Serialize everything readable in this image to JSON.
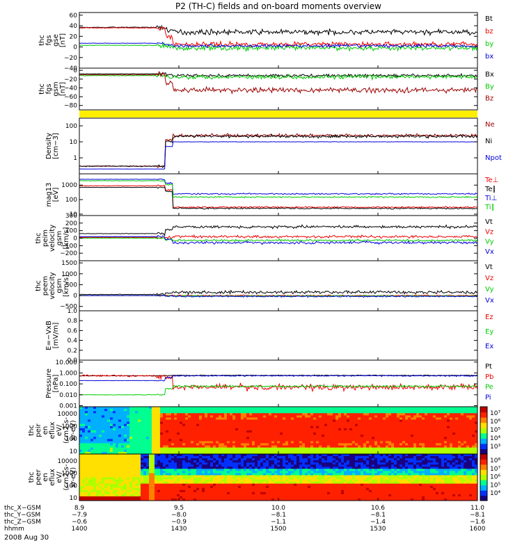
{
  "title": "P2 (TH-C) fields and on-board moments overview",
  "date_label": "2008 Aug 30",
  "colors": {
    "black": "#000000",
    "red": "#ee0000",
    "darkred": "#9b0000",
    "green": "#00cc00",
    "blue": "#0000dd",
    "yellow": "#ffee00"
  },
  "chart_data": [
    {
      "type": "line",
      "ylabel": [
        "thc",
        "fgs",
        "gse",
        "[nT]"
      ],
      "ylim": [
        -40,
        65
      ],
      "log": false,
      "yticks": [
        "60",
        "40",
        "20",
        "0",
        "−20",
        "−40"
      ],
      "ytick_values": [
        60,
        40,
        20,
        0,
        -20,
        -40
      ],
      "series": [
        {
          "name": "Bt",
          "color": "#000000",
          "approx": {
            "pre": 37,
            "post": 28,
            "noise": 8
          }
        },
        {
          "name": "bz",
          "color": "#ee0000",
          "approx": {
            "pre": 36,
            "post": 5,
            "noise": 8
          }
        },
        {
          "name": "by",
          "color": "#00cc00",
          "approx": {
            "pre": 3,
            "post": -2,
            "noise": 8
          }
        },
        {
          "name": "bx",
          "color": "#0000dd",
          "approx": {
            "pre": 7,
            "post": 2,
            "noise": 5
          }
        }
      ]
    },
    {
      "type": "line",
      "ylabel": [
        "thc",
        "fgs",
        "gsm",
        "[nT]"
      ],
      "ylim": [
        -90,
        5
      ],
      "log": false,
      "yticks": [
        "0",
        "−20",
        "−40",
        "−60",
        "−80"
      ],
      "ytick_values": [
        0,
        -20,
        -40,
        -60,
        -80
      ],
      "series": [
        {
          "name": "Bx",
          "color": "#000000",
          "approx": {
            "pre": -8,
            "post": -12,
            "noise": 6
          }
        },
        {
          "name": "By",
          "color": "#00cc00",
          "approx": {
            "pre": -12,
            "post": -15,
            "noise": 8
          }
        },
        {
          "name": "Bz",
          "color": "#9b0000",
          "approx": {
            "pre": -10,
            "post": -45,
            "noise": 10
          }
        }
      ]
    },
    {
      "type": "bar",
      "note": "yellow band",
      "color": "#ffee00"
    },
    {
      "type": "line",
      "ylabel": [
        "Density",
        "[cm−3]"
      ],
      "ylim": [
        0.1,
        300
      ],
      "log": true,
      "yticks": [
        "100",
        "10",
        "1"
      ],
      "ytick_values": [
        100,
        10,
        1
      ],
      "series": [
        {
          "name": "Ne",
          "color": "#9b0000",
          "approx": {
            "pre": 0.3,
            "post": 25,
            "noise": 0.15
          }
        },
        {
          "name": "Ni",
          "color": "#000000",
          "approx": {
            "pre": 0.3,
            "post": 22,
            "noise": 0.15
          }
        },
        {
          "name": "Npot",
          "color": "#0000dd",
          "approx": {
            "pre": 0.2,
            "post": 10,
            "noise": 0.02
          }
        }
      ]
    },
    {
      "type": "line",
      "ylabel": [
        "mag13",
        "[eV]"
      ],
      "ylim": [
        8,
        6000
      ],
      "log": true,
      "yticks": [
        "1000",
        "100",
        "10"
      ],
      "ytick_values": [
        1000,
        100,
        10
      ],
      "series": [
        {
          "name": "Te⊥",
          "color": "#ee0000",
          "approx": {
            "pre": 900,
            "post": 30,
            "noise": 0.08
          }
        },
        {
          "name": "Te∥",
          "color": "#000000",
          "approx": {
            "pre": 700,
            "post": 25,
            "noise": 0.08
          }
        },
        {
          "name": "Ti⊥",
          "color": "#0000dd",
          "approx": {
            "pre": 2500,
            "post": 250,
            "noise": 0.08
          }
        },
        {
          "name": "Ti∥",
          "color": "#00cc00",
          "approx": {
            "pre": 2000,
            "post": 150,
            "noise": 0.08
          }
        }
      ]
    },
    {
      "type": "line",
      "ylabel": [
        "thc",
        "peim",
        "velocity",
        "gsm",
        "[km/s]"
      ],
      "ylim": [
        -300,
        300
      ],
      "log": false,
      "yticks": [
        "300",
        "200",
        "100",
        "0",
        "−100",
        "−200"
      ],
      "ytick_values": [
        300,
        200,
        100,
        0,
        -100,
        -200
      ],
      "series": [
        {
          "name": "Vt",
          "color": "#000000",
          "approx": {
            "pre": 60,
            "post": 150,
            "noise": 30
          }
        },
        {
          "name": "Vz",
          "color": "#ee0000",
          "approx": {
            "pre": 10,
            "post": 20,
            "noise": 25
          }
        },
        {
          "name": "Vy",
          "color": "#00cc00",
          "approx": {
            "pre": 0,
            "post": -30,
            "noise": 25
          }
        },
        {
          "name": "Vx",
          "color": "#0000dd",
          "approx": {
            "pre": 20,
            "post": -60,
            "noise": 30
          }
        }
      ]
    },
    {
      "type": "line",
      "ylabel": [
        "thc",
        "peem",
        "velocity",
        "gsm",
        "[km/s]"
      ],
      "ylim": [
        -700,
        1600
      ],
      "log": false,
      "yticks": [
        "1500",
        "1000",
        "500",
        "0",
        "−500"
      ],
      "ytick_values": [
        1500,
        1000,
        500,
        0,
        -500
      ],
      "series": [
        {
          "name": "Vt",
          "color": "#000000",
          "approx": {
            "pre": 50,
            "post": 150,
            "noise": 120
          }
        },
        {
          "name": "Vz",
          "color": "#ee0000",
          "approx": {
            "pre": 0,
            "post": 0,
            "noise": 40
          }
        },
        {
          "name": "Vy",
          "color": "#00cc00",
          "approx": {
            "pre": 0,
            "post": -20,
            "noise": 50
          }
        },
        {
          "name": "Vx",
          "color": "#0000dd",
          "approx": {
            "pre": 0,
            "post": -40,
            "noise": 50
          }
        }
      ]
    },
    {
      "type": "line",
      "ylabel": [
        "E=−VxB",
        "[mV/m]"
      ],
      "ylim": [
        0,
        1.0
      ],
      "log": false,
      "yticks": [
        "1.0",
        "0.8",
        "0.6",
        "0.4",
        "0.2",
        "0.0"
      ],
      "ytick_values": [
        1.0,
        0.8,
        0.6,
        0.4,
        0.2,
        0.0
      ],
      "series": [
        {
          "name": "Ez",
          "color": "#ee0000"
        },
        {
          "name": "Ey",
          "color": "#00cc00"
        },
        {
          "name": "Ex",
          "color": "#0000dd"
        }
      ]
    },
    {
      "type": "line",
      "ylabel": [
        "Pressure",
        "[nPa]"
      ],
      "ylim": [
        0.0008,
        15
      ],
      "log": true,
      "yticks": [
        "10.000",
        "1.000",
        "0.100",
        "0.010",
        "0.001"
      ],
      "ytick_values": [
        10,
        1,
        0.1,
        0.01,
        0.001
      ],
      "series": [
        {
          "name": "Pt",
          "color": "#000000",
          "approx": {
            "pre": 0.55,
            "post": 0.6,
            "noise": 0.06
          }
        },
        {
          "name": "Pb",
          "color": "#ee0000",
          "approx": {
            "pre": 0.55,
            "post": 0.05,
            "noise": 0.5
          }
        },
        {
          "name": "Pe",
          "color": "#00cc00",
          "approx": {
            "pre": 0.01,
            "post": 0.06,
            "noise": 0.15
          }
        },
        {
          "name": "Pi",
          "color": "#0000dd",
          "approx": {
            "pre": 0.2,
            "post": 0.55,
            "noise": 0.08
          }
        }
      ]
    },
    {
      "type": "heatmap",
      "ylabel": [
        "thc",
        "peir",
        "en",
        "eflux",
        "eV/",
        "(cm2-s-",
        "sr-eV)"
      ],
      "yticks": [
        "10000",
        "1000",
        "100",
        "10"
      ],
      "colorbar_ticks": [
        "10⁷",
        "10⁶",
        "10⁵",
        "10⁴",
        "10³"
      ]
    },
    {
      "type": "heatmap",
      "ylabel": [
        "thc",
        "peer",
        "en",
        "eflux",
        "eV/",
        "(cm2-s-",
        "sr-eV)"
      ],
      "yticks": [
        "10000",
        "1000",
        "100",
        "10"
      ],
      "colorbar_ticks": [
        "10⁸",
        "10⁷",
        "10⁶",
        "10⁵",
        "10⁴"
      ]
    }
  ],
  "x_axis": {
    "ticks": [
      "1400",
      "1430",
      "1500",
      "1530",
      "1600"
    ],
    "rows": [
      {
        "label": "thc_X−GSM",
        "values": [
          "8.9",
          "9.5",
          "10.0",
          "10.6",
          "11.0"
        ]
      },
      {
        "label": "thc_Y−GSM",
        "values": [
          "−7.9",
          "−8.0",
          "−8.1",
          "−8.1",
          "−8.1"
        ]
      },
      {
        "label": "thc_Z−GSM",
        "values": [
          "−0.6",
          "−0.9",
          "−1.1",
          "−1.4",
          "−1.6"
        ]
      },
      {
        "label": "hhmm",
        "values": [
          "1400",
          "1430",
          "1500",
          "1530",
          "1600"
        ]
      }
    ]
  }
}
